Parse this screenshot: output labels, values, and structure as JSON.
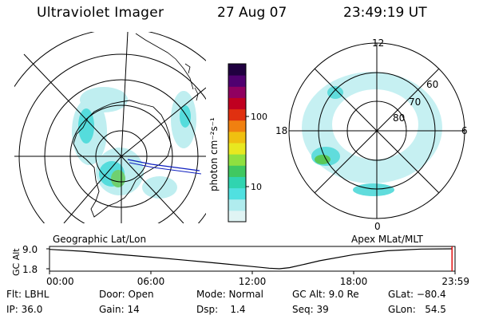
{
  "header": {
    "instrument": "Ultraviolet Imager",
    "date": "27 Aug 07",
    "time": "23:49:19 UT"
  },
  "left_panel": {
    "label": "Geographic Lat/Lon"
  },
  "right_panel": {
    "label": "Apex MLat/MLT",
    "mlt_labels": [
      "12",
      "18",
      "6",
      "0"
    ],
    "lat_labels": [
      "60",
      "70",
      "80"
    ]
  },
  "colorbar": {
    "unit": "photon cm⁻²s⁻¹",
    "ticks": [
      "100",
      "10"
    ],
    "scale": "log",
    "range": [
      2,
      2000
    ],
    "colors": [
      "#e0f4f4",
      "#b0ecee",
      "#50e0e0",
      "#30d4b0",
      "#40c860",
      "#90e040",
      "#e8e820",
      "#f0c010",
      "#f08010",
      "#e03010",
      "#c00020",
      "#900060",
      "#500070",
      "#200040"
    ]
  },
  "chart_data": {
    "type": "line",
    "title": "",
    "xlabel": "",
    "ylabel": "GC Alt",
    "x_ticks": [
      "00:00",
      "06:00",
      "12:00",
      "18:00",
      "23:59"
    ],
    "y_ticks": [
      "9.0",
      "1.8"
    ],
    "x_range_hours": [
      0,
      24
    ],
    "ylim": [
      1.8,
      9.0
    ],
    "series": [
      {
        "x_hours": [
          0,
          2,
          4,
          6,
          8,
          10,
          12,
          13,
          13.6,
          14.2,
          15,
          16,
          18,
          20,
          22,
          23.83
        ],
        "values": [
          8.8,
          8.1,
          7.0,
          6.0,
          4.9,
          3.8,
          2.6,
          2.0,
          1.8,
          2.2,
          3.3,
          4.7,
          6.9,
          8.3,
          8.9,
          9.0
        ]
      }
    ],
    "current_time_hours": 23.82
  },
  "status_bar": {
    "flt": "Flt: LBHL",
    "ip": "IP: 36.0",
    "door": "Door: Open",
    "gain": "Gain: 14",
    "mode": "Mode: Normal",
    "dsp": "Dsp:    1.4",
    "gc_alt": "GC Alt: 9.0 Re",
    "seq": "Seq: 39",
    "glat": "GLat: −80.4",
    "glon": "GLon:   54.5"
  }
}
